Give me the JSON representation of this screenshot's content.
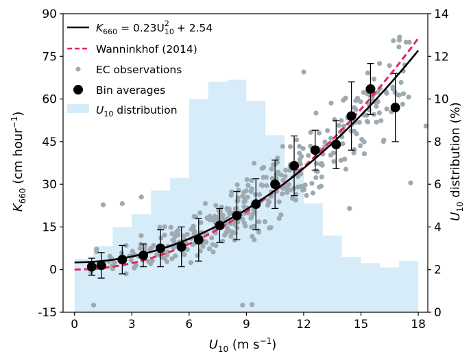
{
  "chart_data": {
    "type": "scatter",
    "x_axis": {
      "label_main": "U",
      "label_sub": "10",
      "label_unit": " (m s",
      "label_unit_sup": "−1",
      "label_close": ")",
      "range": [
        -0.6,
        18.5
      ],
      "ticks": [
        0,
        3,
        6,
        9,
        12,
        15,
        18
      ]
    },
    "y_left": {
      "label_main": "K",
      "label_sub": "660",
      "label_unit": " (cm hour",
      "label_unit_sup": "−1",
      "label_close": ")",
      "range": [
        -15,
        90
      ],
      "ticks": [
        -15,
        0,
        15,
        30,
        45,
        60,
        75,
        90
      ]
    },
    "y_right": {
      "label_main": "U",
      "label_sub": "10",
      "label_rest": " distribution (%)",
      "range": [
        0,
        14
      ],
      "ticks": [
        0,
        2,
        4,
        6,
        8,
        10,
        12,
        14
      ]
    },
    "legend": {
      "placement": "top-left",
      "fit_label": {
        "lhs": "K",
        "lhs_sub": "660",
        "mid": " = 0.23U",
        "sub": "10",
        "sup": "2",
        "tail": " + 2.54"
      },
      "wanninkhof_label": "Wanninkhof (2014)",
      "ec_label": "EC observations",
      "bin_label": "Bin averages",
      "dist_label": {
        "main": "U",
        "sub": "10",
        "rest": " distribution"
      }
    },
    "series": [
      {
        "key": "fit",
        "coeff_a": 0.23,
        "coeff_b": 2.54,
        "color": "#000000"
      },
      {
        "key": "wanninkhof",
        "coeff_a": 0.251,
        "coeff_b": 0.0,
        "color": "#e8245a"
      }
    ],
    "histogram": {
      "color": "#d6ecf8",
      "bin_edges": [
        0,
        1,
        2,
        3,
        4,
        5,
        6,
        7,
        8,
        9,
        10,
        11,
        12,
        13,
        14,
        15,
        16,
        17,
        18
      ],
      "values": [
        2.5,
        3.1,
        4.0,
        4.6,
        5.7,
        6.3,
        10.0,
        10.8,
        10.9,
        9.9,
        8.3,
        6.8,
        5.1,
        3.6,
        2.6,
        2.3,
        2.1,
        2.4
      ]
    },
    "scatter_color": "#9eaab1",
    "bins": {
      "color": "#000000",
      "x": [
        0.9,
        1.4,
        2.5,
        3.6,
        4.5,
        5.6,
        6.5,
        7.6,
        8.5,
        9.5,
        10.5,
        11.5,
        12.6,
        13.7,
        14.5,
        15.5,
        16.8
      ],
      "y": [
        1.0,
        1.5,
        3.5,
        5.0,
        7.5,
        8.0,
        10.5,
        15.5,
        19.0,
        23.0,
        30.0,
        36.5,
        42.0,
        44.0,
        54.0,
        63.5,
        57.0
      ],
      "err": [
        3.0,
        4.5,
        5.0,
        4.0,
        6.5,
        7.0,
        7.5,
        6.0,
        8.5,
        9.0,
        8.5,
        10.5,
        7.0,
        8.5,
        12.0,
        9.0,
        12.0
      ]
    }
  }
}
